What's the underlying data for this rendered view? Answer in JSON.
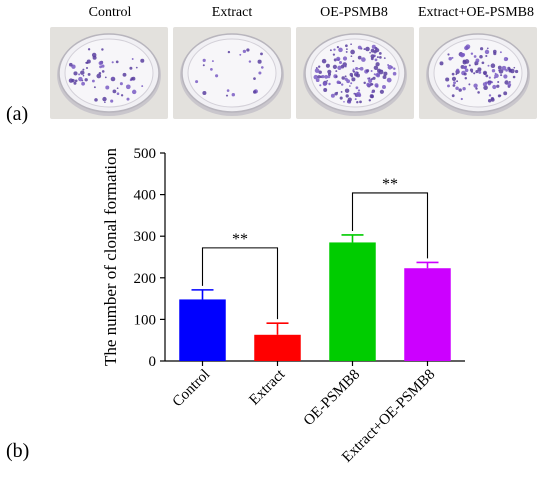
{
  "figure": {
    "panel_a_label": "(a)",
    "panel_b_label": "(b)",
    "photos": [
      {
        "label": "Control",
        "colony_density": "medium",
        "colony_count": 60
      },
      {
        "label": "Extract",
        "colony_density": "low",
        "colony_count": 22
      },
      {
        "label": "OE-PSMB8",
        "colony_density": "high",
        "colony_count": 150
      },
      {
        "label": "Extract+OE-PSMB8",
        "colony_density": "medium-high",
        "colony_count": 110
      }
    ]
  },
  "chart_data": {
    "type": "bar",
    "title": "",
    "xlabel": "",
    "ylabel": "The number of clonal formation",
    "ylim": [
      0,
      500
    ],
    "yticks": [
      0,
      100,
      200,
      300,
      400,
      500
    ],
    "categories": [
      "Control",
      "Extract",
      "OE-PSMB8",
      "Extract+OE-PSMB8"
    ],
    "values": [
      148,
      63,
      285,
      223
    ],
    "errors": [
      23,
      28,
      18,
      14
    ],
    "colors": [
      "#0000ff",
      "#ff0000",
      "#00cc00",
      "#cc00ff"
    ],
    "annotations": [
      {
        "text": "**",
        "from_category": "Control",
        "to_category": "Extract"
      },
      {
        "text": "**",
        "from_category": "OE-PSMB8",
        "to_category": "Extract+OE-PSMB8"
      }
    ],
    "grid": false,
    "legend": "none"
  }
}
